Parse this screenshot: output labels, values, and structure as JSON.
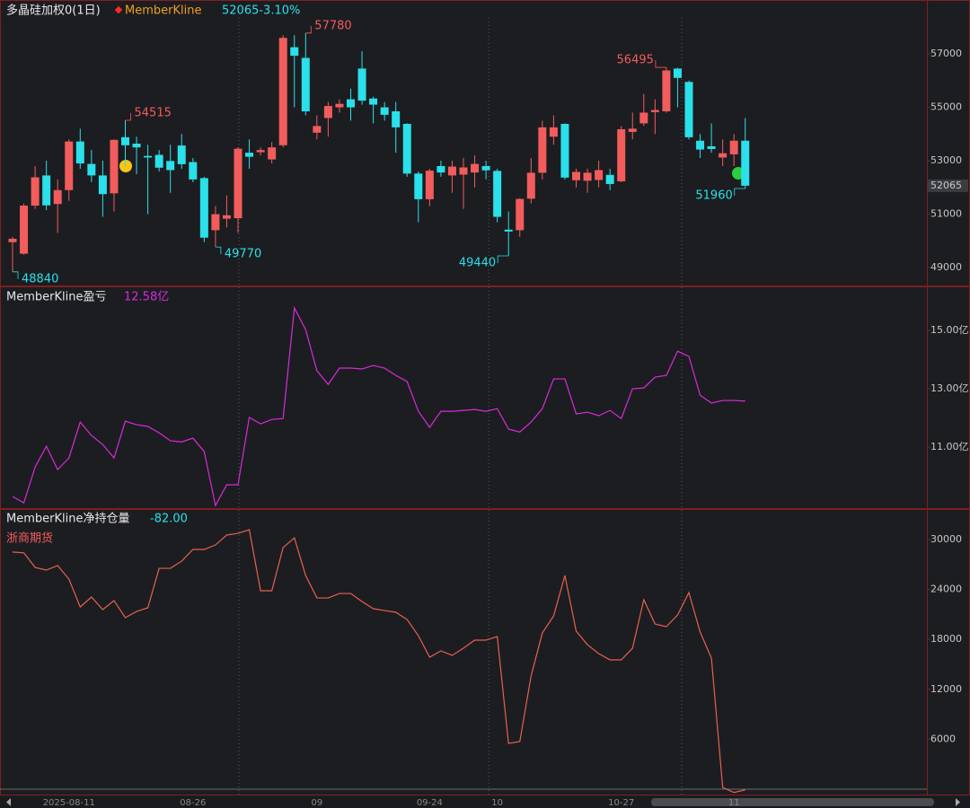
{
  "chart_data": [
    {
      "type": "candlestick",
      "title": "多晶硅加权0(1日)",
      "indicator": "MemberKline",
      "change_label": "52065-3.10%",
      "categories": [
        null,
        null,
        null,
        null,
        null,
        "2025-08-11",
        null,
        null,
        null,
        null,
        null,
        null,
        null,
        null,
        null,
        null,
        "08-26",
        null,
        null,
        null,
        null,
        null,
        null,
        null,
        null,
        null,
        null,
        "09",
        null,
        null,
        null,
        null,
        null,
        null,
        null,
        null,
        null,
        "09-24",
        null,
        null,
        null,
        null,
        null,
        "10",
        null,
        null,
        null,
        null,
        null,
        null,
        null,
        null,
        null,
        null,
        "10-27",
        null,
        null,
        null,
        null,
        null,
        null,
        null,
        null,
        null,
        "11",
        null
      ],
      "open": [
        49950,
        49520,
        51320,
        52450,
        51380,
        51900,
        53720,
        52880,
        52450,
        51780,
        53880,
        53640,
        53180,
        53220,
        52990,
        53570,
        52950,
        52350,
        50400,
        50830,
        50850,
        53300,
        53320,
        53050,
        53580,
        57250,
        56850,
        54050,
        54600,
        55000,
        55300,
        56450,
        55330,
        55000,
        54850,
        54380,
        52520,
        51560,
        52800,
        52450,
        52480,
        52560,
        52800,
        52620,
        50420,
        50400,
        51580,
        52550,
        53900,
        54380,
        52270,
        52250,
        52280,
        52470,
        52230,
        54080,
        54400,
        54820,
        54850,
        56450,
        55950,
        53750,
        53540,
        53120,
        53240,
        53750
      ],
      "high": [
        50150,
        51400,
        52800,
        53000,
        52300,
        53800,
        54200,
        53400,
        53000,
        53800,
        54515,
        53900,
        53600,
        53400,
        53600,
        54000,
        53100,
        52400,
        51300,
        51700,
        53500,
        53800,
        53500,
        53700,
        57700,
        57700,
        57780,
        54700,
        55200,
        55300,
        55700,
        57100,
        55400,
        55200,
        55200,
        54400,
        52600,
        52700,
        53000,
        53000,
        53100,
        53200,
        53000,
        52700,
        51100,
        51600,
        53100,
        54500,
        54700,
        54400,
        52700,
        52700,
        53000,
        52700,
        54300,
        54800,
        55500,
        55300,
        56495,
        56480,
        56000,
        54000,
        54400,
        53800,
        54000,
        54600
      ],
      "low": [
        48840,
        49480,
        51200,
        51150,
        50300,
        51500,
        52700,
        52200,
        50900,
        51100,
        52800,
        52500,
        51000,
        52600,
        51800,
        52700,
        52200,
        49950,
        49770,
        50500,
        50300,
        52700,
        53200,
        52900,
        53500,
        55000,
        54700,
        53800,
        53900,
        54800,
        54500,
        55100,
        54400,
        54500,
        53300,
        52400,
        50700,
        51300,
        52400,
        51800,
        51200,
        52000,
        52300,
        50700,
        49440,
        50150,
        51400,
        52300,
        53600,
        52300,
        52000,
        51800,
        52000,
        51900,
        52200,
        53800,
        54300,
        54000,
        54800,
        55000,
        53800,
        53100,
        53300,
        52800,
        52800,
        51960
      ],
      "close": [
        50080,
        51320,
        52380,
        51330,
        51900,
        53720,
        52900,
        52450,
        51750,
        53780,
        53580,
        53500,
        53120,
        52740,
        52650,
        52870,
        52300,
        50120,
        51000,
        50960,
        53450,
        53150,
        53400,
        53500,
        57600,
        56930,
        54850,
        54300,
        55050,
        55130,
        55000,
        55250,
        55100,
        54720,
        54250,
        52520,
        51560,
        52630,
        52560,
        52780,
        52750,
        52880,
        52640,
        50900,
        50350,
        51570,
        52550,
        54250,
        54250,
        52370,
        52580,
        52550,
        52650,
        52130,
        54180,
        54200,
        54800,
        54900,
        56380,
        56100,
        53880,
        53420,
        53440,
        53280,
        53750,
        52065
      ],
      "up_color": "#f25c5c",
      "down_color": "#2ae0ea",
      "ylim": [
        48330,
        58950
      ],
      "yticks": [
        57000,
        55000,
        53000,
        51000,
        49000
      ],
      "last_price": 52065,
      "high_low_labels": [
        54515,
        57780,
        56495,
        48840,
        49770,
        49440,
        51960
      ]
    },
    {
      "type": "line",
      "value_label": "12.58亿",
      "series": [
        {
          "name": "MemberKline盈亏",
          "color": "#d92bd9",
          "values": [
            9.31,
            9.09,
            10.32,
            11.03,
            10.23,
            10.63,
            11.86,
            11.4,
            11.09,
            10.63,
            11.89,
            11.77,
            11.71,
            11.49,
            11.22,
            11.18,
            11.31,
            10.85,
            9.0,
            9.71,
            9.71,
            12.02,
            11.8,
            11.95,
            11.98,
            15.77,
            15.03,
            13.62,
            13.15,
            13.71,
            13.71,
            13.68,
            13.8,
            13.71,
            13.46,
            13.25,
            12.23,
            11.68,
            12.23,
            12.23,
            12.26,
            12.29,
            12.23,
            12.32,
            11.62,
            11.52,
            11.86,
            12.32,
            13.34,
            13.34,
            12.14,
            12.2,
            12.08,
            12.26,
            11.98,
            13.0,
            13.03,
            13.4,
            13.46,
            14.29,
            14.11,
            12.78,
            12.51,
            12.6,
            12.6,
            12.58
          ]
        }
      ],
      "ylim": [
        8.91,
        16.48
      ],
      "yticks": [
        {
          "value": 15,
          "label": "15.00亿"
        },
        {
          "value": 13,
          "label": "13.00亿"
        },
        {
          "value": 11,
          "label": "11.00亿"
        }
      ]
    },
    {
      "type": "line",
      "value_label": "-82.00",
      "subtitle": "浙商期货",
      "series": [
        {
          "name": "MemberKline净持仓量",
          "color": "#e8604f",
          "values": [
            28500,
            28400,
            26650,
            26330,
            26870,
            25250,
            21900,
            23090,
            21580,
            22660,
            20610,
            21360,
            21800,
            26540,
            26540,
            27400,
            28810,
            28810,
            29350,
            30540,
            30750,
            31180,
            23850,
            23850,
            29030,
            30210,
            25680,
            22980,
            22980,
            23520,
            23520,
            22550,
            21690,
            21470,
            21260,
            20390,
            18450,
            15860,
            16620,
            16080,
            16940,
            17910,
            17910,
            18340,
            5500,
            5720,
            13600,
            18770,
            20820,
            25680,
            18990,
            17370,
            16290,
            15540,
            15540,
            16940,
            22770,
            19850,
            19530,
            20930,
            23630,
            18880,
            15750,
            200,
            -400,
            -82
          ]
        }
      ],
      "ylim": [
        -755,
        33560
      ],
      "yticks": [
        30000,
        24000,
        18000,
        12000,
        6000
      ]
    }
  ]
}
